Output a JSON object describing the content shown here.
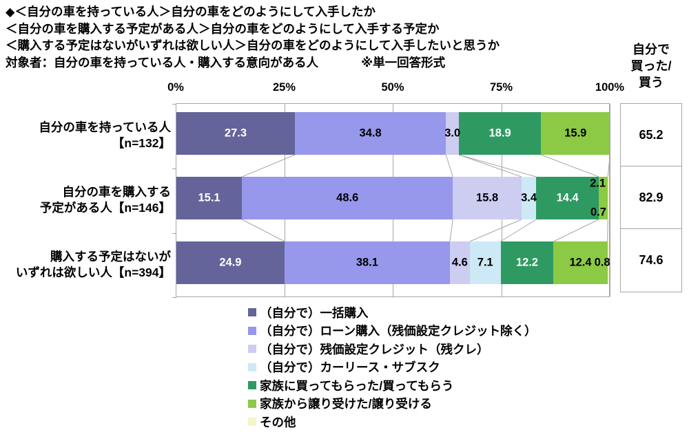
{
  "header": {
    "title_lines": [
      "◆＜自分の車を持っている人＞自分の車をどのようにして入手したか",
      "＜自分の車を購入する予定がある人＞自分の車をどのようにして入手する予定か",
      "＜購入する予定はないがいずれは欲しい人＞自分の車をどのようにして入手したいと思うか"
    ],
    "target_line": "対象者：自分の車を持っている人・購入する意向がある人",
    "note": "※単一回答形式"
  },
  "right_panel": {
    "header_lines": [
      "自分で",
      "買った/",
      "買う"
    ]
  },
  "chart_data": {
    "type": "bar",
    "subtype": "horizontal-stacked",
    "unit": "%",
    "xlim": [
      0,
      100
    ],
    "x_ticks": [
      "0%",
      "25%",
      "50%",
      "75%",
      "100%"
    ],
    "gridlines_percent": [
      25,
      50,
      75,
      100
    ],
    "grid_color": "#A6A6A6",
    "connector_color": "#A6A6A6",
    "series": [
      {
        "name": "（自分で）一括購入",
        "color": "#64649B",
        "label_color": "#FFFFFF"
      },
      {
        "name": "（自分で）ローン購入（残価設定クレジット除く）",
        "color": "#9797EC",
        "label_color": "#000000"
      },
      {
        "name": "（自分で）残価設定クレジット（残クレ）",
        "color": "#CDCCF1",
        "label_color": "#000000"
      },
      {
        "name": "（自分で）カーリース・サブスク",
        "color": "#CDE9F6",
        "label_color": "#000000"
      },
      {
        "name": "家族に買ってもらった/買ってもらう",
        "color": "#2E9A62",
        "label_color": "#FFFFFF"
      },
      {
        "name": "家族から譲り受けた/譲り受ける",
        "color": "#8CC944",
        "label_color": "#000000"
      },
      {
        "name": "その他",
        "color": "#F5F5C8",
        "label_color": "#000000"
      }
    ],
    "rows": [
      {
        "label_lines": [
          "自分の車を持っている人",
          "【n=132】"
        ],
        "n": 132,
        "values": [
          27.3,
          34.8,
          3.0,
          0,
          18.9,
          15.9,
          0
        ],
        "labels": [
          "27.3",
          "34.8",
          "3.0",
          "",
          "18.9",
          "15.9",
          ""
        ],
        "label_overrides": {},
        "self_bought": "65.2"
      },
      {
        "label_lines": [
          "自分の車を購入する",
          "予定がある人【n=146】"
        ],
        "n": 146,
        "values": [
          15.1,
          48.6,
          15.8,
          3.4,
          14.4,
          2.1,
          0.7
        ],
        "labels": [
          "15.1",
          "48.6",
          "15.8",
          "3.4",
          "14.4",
          "2.1",
          "0.7"
        ],
        "label_overrides": {
          "5": {
            "pos": "top",
            "dx": -8
          },
          "6": {
            "pos": "bottom",
            "dx": -16
          }
        },
        "self_bought": "82.9"
      },
      {
        "label_lines": [
          "購入する予定はないが",
          "いずれは欲しい人【n=394】"
        ],
        "n": 394,
        "values": [
          24.9,
          38.1,
          4.6,
          7.1,
          12.2,
          12.4,
          0.8
        ],
        "labels": [
          "24.9",
          "38.1",
          "4.6",
          "7.1",
          "12.2",
          "12.4",
          "0.8"
        ],
        "label_overrides": {
          "6": {
            "dx": -10
          }
        },
        "self_bought": "74.6"
      }
    ],
    "right_column_title": "自分で買った/買う",
    "legend_position": "bottom"
  }
}
